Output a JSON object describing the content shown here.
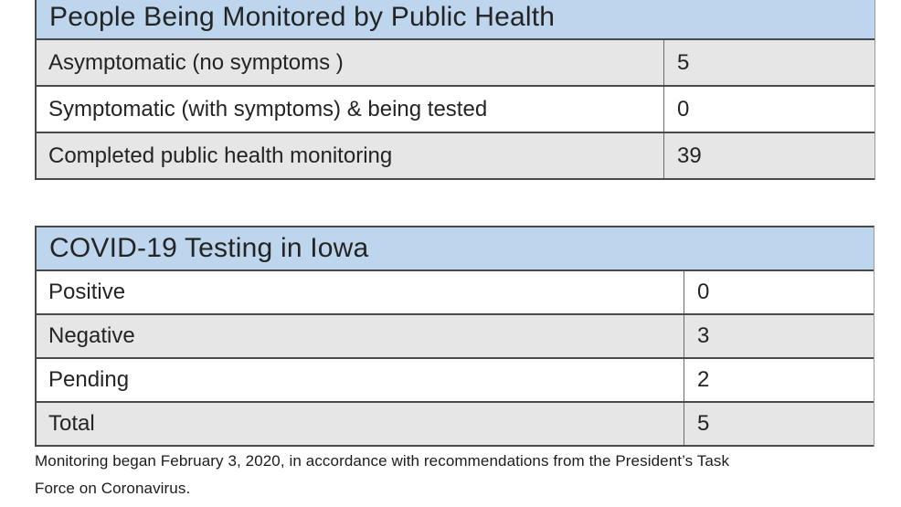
{
  "colors": {
    "header_bg": "#bdd6ee",
    "row_alt_bg": "#e7e6e6",
    "row_bg": "#ffffff",
    "border_dark": "#4a4a4a",
    "border_mid": "#6b6b6b",
    "border_light": "#9a9a9a",
    "text_color": "#242424",
    "footnote_color": "#1c1c1c"
  },
  "tables": [
    {
      "title": "People Being Monitored by Public Health",
      "rows": [
        {
          "label": "Asymptomatic (no symptoms )",
          "value": "5"
        },
        {
          "label": "Symptomatic (with symptoms) & being tested",
          "value": "0"
        },
        {
          "label": "Completed public health monitoring",
          "value": "39"
        }
      ]
    },
    {
      "title": "COVID-19 Testing in Iowa",
      "rows": [
        {
          "label": "Positive",
          "value": "0"
        },
        {
          "label": "Negative",
          "value": "3"
        },
        {
          "label": "Pending",
          "value": "2"
        },
        {
          "label": "Total",
          "value": "5"
        }
      ]
    }
  ],
  "footnote": {
    "line1": "Monitoring began February 3, 2020, in accordance with recommendations from the President’s Task",
    "line2": "Force on Coronavirus."
  }
}
